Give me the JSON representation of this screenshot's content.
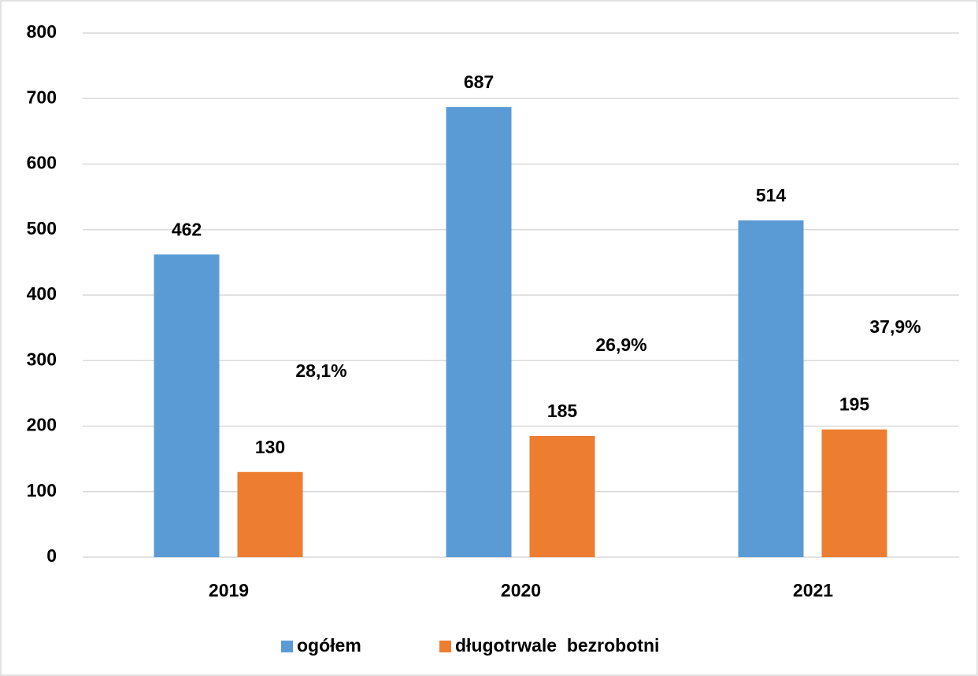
{
  "chart_data": {
    "type": "bar",
    "categories": [
      "2019",
      "2020",
      "2021"
    ],
    "series": [
      {
        "name": "ogółem",
        "color": "#5b9bd5",
        "values": [
          462,
          687,
          514
        ]
      },
      {
        "name": "długotrwale  bezrobotni",
        "color": "#ed7d31",
        "values": [
          130,
          185,
          195
        ]
      }
    ],
    "annotations": [
      "28,1%",
      "26,9%",
      "37,9%"
    ],
    "ylim": [
      0,
      800
    ],
    "yticks": [
      0,
      100,
      200,
      300,
      400,
      500,
      600,
      700,
      800
    ],
    "grid": true,
    "legend": "bottom"
  }
}
